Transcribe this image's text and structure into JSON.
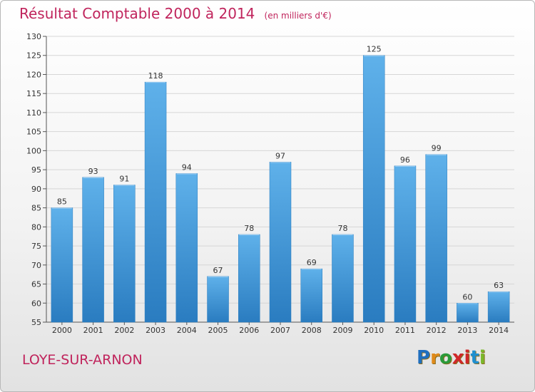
{
  "title": "Résultat Comptable 2000 à 2014",
  "subtitle": "(en milliers d'€)",
  "commune": "LOYE-SUR-ARNON",
  "logo": {
    "letters": [
      "P",
      "r",
      "o",
      "x",
      "i",
      "t",
      "i"
    ],
    "colors": [
      "#1f6fbf",
      "#e08a1a",
      "#2a9a3a",
      "#d0282a",
      "#d0282a",
      "#1f8fd0",
      "#7ab82a"
    ]
  },
  "colors": {
    "bar": "#3f97da",
    "bar_light": "#5aaee8",
    "bar_dark": "#2b7ec0",
    "title": "#c0245c"
  },
  "chart_data": {
    "type": "bar",
    "categories": [
      "2000",
      "2001",
      "2002",
      "2003",
      "2004",
      "2005",
      "2006",
      "2007",
      "2008",
      "2009",
      "2010",
      "2011",
      "2012",
      "2013",
      "2014"
    ],
    "values": [
      85,
      93,
      91,
      118,
      94,
      67,
      78,
      97,
      69,
      78,
      125,
      96,
      99,
      60,
      63
    ],
    "ylim": [
      55,
      130
    ],
    "yticks": [
      55,
      60,
      65,
      70,
      75,
      80,
      85,
      90,
      95,
      100,
      105,
      110,
      115,
      120,
      125,
      130
    ],
    "grid": true
  }
}
